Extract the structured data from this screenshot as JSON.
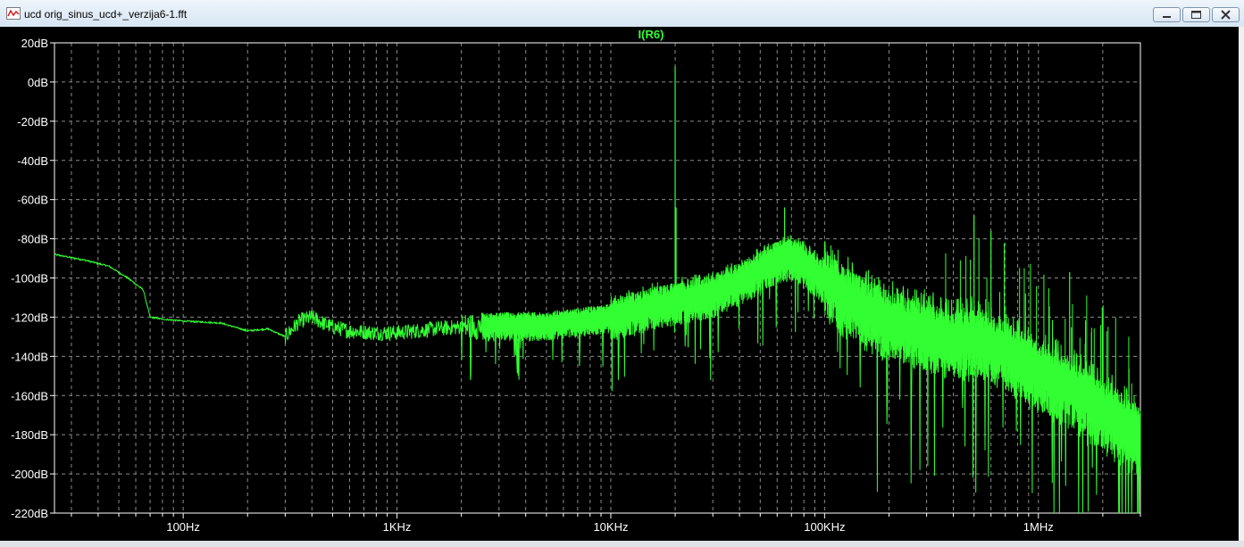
{
  "window": {
    "title": "ucd orig_sinus_ucd+_verzija6-1.fft",
    "buttons": {
      "minimize": "minimize",
      "maximize": "maximize",
      "close": "close"
    }
  },
  "plot": {
    "background": "#000000",
    "trace_color": "#33ff33",
    "axis_color": "#ffffff",
    "grid": true,
    "grid_style": "dashed"
  },
  "chart_data": {
    "type": "line",
    "title": "I(R6)",
    "xlabel": "",
    "ylabel": "",
    "x_scale": "log",
    "xlim": [
      25,
      3000000
    ],
    "ylim": [
      -220,
      20
    ],
    "x_ticks": [
      {
        "value": 100,
        "label": "100Hz"
      },
      {
        "value": 1000,
        "label": "1KHz"
      },
      {
        "value": 10000,
        "label": "10KHz"
      },
      {
        "value": 100000,
        "label": "100KHz"
      },
      {
        "value": 1000000,
        "label": "1MHz"
      }
    ],
    "y_ticks": [
      {
        "value": 20,
        "label": "20dB"
      },
      {
        "value": 0,
        "label": "0dB"
      },
      {
        "value": -20,
        "label": "-20dB"
      },
      {
        "value": -40,
        "label": "-40dB"
      },
      {
        "value": -60,
        "label": "-60dB"
      },
      {
        "value": -80,
        "label": "-80dB"
      },
      {
        "value": -100,
        "label": "-100dB"
      },
      {
        "value": -120,
        "label": "-120dB"
      },
      {
        "value": -140,
        "label": "-140dB"
      },
      {
        "value": -160,
        "label": "-160dB"
      },
      {
        "value": -180,
        "label": "-180dB"
      },
      {
        "value": -200,
        "label": "-200dB"
      },
      {
        "value": -220,
        "label": "-220dB"
      }
    ],
    "series": [
      {
        "name": "I(R6)",
        "x": [
          25,
          35,
          45,
          55,
          65,
          70,
          80,
          100,
          150,
          200,
          250,
          300,
          350,
          400,
          450,
          500,
          600,
          800,
          1000,
          1500,
          2000,
          3000,
          5000,
          10000,
          15000,
          20000,
          30000,
          40000,
          50000,
          60000,
          70000,
          80000,
          100000,
          150000,
          200000,
          300000,
          400000,
          500000,
          700000,
          1000000,
          1500000,
          2000000,
          3000000
        ],
        "y": [
          -88,
          -91,
          -94,
          -100,
          -106,
          -120,
          -121,
          -122,
          -123,
          -127,
          -126,
          -130,
          -122,
          -120,
          -123,
          -125,
          -127,
          -128,
          -128,
          -126,
          -125,
          -124,
          -124,
          -120,
          -115,
          -112,
          -108,
          -102,
          -96,
          -91,
          -89,
          -92,
          -102,
          -115,
          -122,
          -128,
          -132,
          -131,
          -137,
          -148,
          -158,
          -168,
          -182
        ]
      }
    ],
    "peaks": [
      {
        "x": 20000,
        "y": 8
      },
      {
        "x": 20200,
        "y": -64
      },
      {
        "x": 65000,
        "y": -64
      },
      {
        "x": 500000,
        "y": -68
      },
      {
        "x": 600000,
        "y": -76
      },
      {
        "x": 1400000,
        "y": -97
      },
      {
        "x": 2000000,
        "y": -118
      }
    ]
  }
}
